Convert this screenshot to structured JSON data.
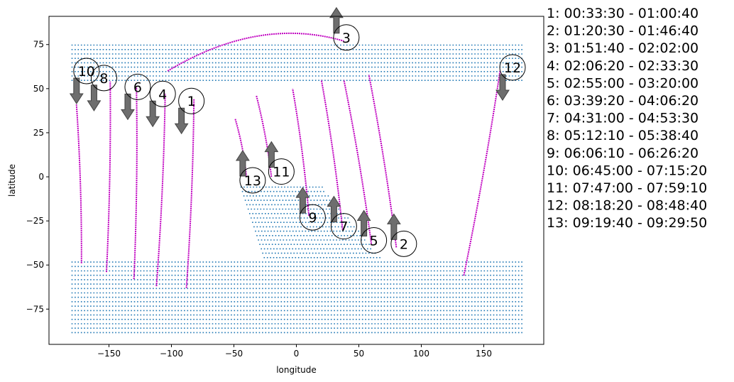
{
  "chart_data": {
    "type": "scatter",
    "title": "",
    "xlabel": "longitude",
    "ylabel": "latitude",
    "xlim": [
      -198,
      198
    ],
    "ylim": [
      -95,
      91
    ],
    "x_ticks": [
      -150,
      -100,
      -50,
      0,
      50,
      100,
      150
    ],
    "y_ticks": [
      -75,
      -50,
      -25,
      0,
      25,
      50,
      75
    ],
    "grid": false,
    "colors": {
      "ground_points": "#1f77b4",
      "track": "#c000c0",
      "arrow": "#6e6e6e"
    },
    "ground_points": {
      "description_of_region": "grid of points at 2.5 degree spacing",
      "spacing_deg": 2.5,
      "regions": [
        {
          "lat_min": 55,
          "lat_max": 77,
          "lon_min": -180,
          "lon_max": 180
        },
        {
          "lat_min": -88,
          "lat_max": -48,
          "lon_min": -180,
          "lon_max": 180
        },
        {
          "lat_min": -48,
          "lat_max": -5,
          "lon_min": -45,
          "lon_max": 70
        }
      ]
    },
    "tracks": [
      {
        "id": "1",
        "from": [
          -88,
          -63
        ],
        "to": [
          -82,
          44
        ]
      },
      {
        "id": "2",
        "from": [
          80,
          -40
        ],
        "to": [
          58,
          58
        ]
      },
      {
        "id": "3",
        "from": [
          -103,
          60
        ],
        "to": [
          38,
          77
        ],
        "peak": [
          -30,
          83
        ]
      },
      {
        "id": "4",
        "from": [
          -112,
          -62
        ],
        "to": [
          -105,
          47
        ]
      },
      {
        "id": "5",
        "from": [
          60,
          -38
        ],
        "to": [
          38,
          55
        ]
      },
      {
        "id": "6",
        "from": [
          -130,
          -58
        ],
        "to": [
          -128,
          51
        ]
      },
      {
        "id": "7",
        "from": [
          37,
          -30
        ],
        "to": [
          20,
          55
        ]
      },
      {
        "id": "8",
        "from": [
          -152,
          -54
        ],
        "to": [
          -149,
          54
        ]
      },
      {
        "id": "9",
        "from": [
          10,
          -22
        ],
        "to": [
          -3,
          50
        ]
      },
      {
        "id": "10",
        "from": [
          -172,
          -49
        ],
        "to": [
          -176,
          41
        ]
      },
      {
        "id": "11",
        "from": [
          -20,
          0
        ],
        "to": [
          -32,
          46
        ]
      },
      {
        "id": "12",
        "from": [
          134,
          -56
        ],
        "to": [
          163,
          60
        ]
      },
      {
        "id": "13",
        "from": [
          -40,
          0
        ],
        "to": [
          -49,
          33
        ]
      }
    ],
    "markers": [
      {
        "label": "1",
        "lon": -84,
        "lat": 43,
        "dir": "down"
      },
      {
        "label": "2",
        "lon": 86,
        "lat": -38,
        "dir": "up"
      },
      {
        "label": "3",
        "lon": 40,
        "lat": 79,
        "dir": "up"
      },
      {
        "label": "4",
        "lon": -107,
        "lat": 47,
        "dir": "down"
      },
      {
        "label": "5",
        "lon": 62,
        "lat": -36,
        "dir": "up"
      },
      {
        "label": "6",
        "lon": -127,
        "lat": 51,
        "dir": "down"
      },
      {
        "label": "7",
        "lon": 38,
        "lat": -28,
        "dir": "up"
      },
      {
        "label": "8",
        "lon": -154,
        "lat": 56,
        "dir": "down"
      },
      {
        "label": "9",
        "lon": 13,
        "lat": -23,
        "dir": "up"
      },
      {
        "label": "10",
        "lon": -168,
        "lat": 60,
        "dir": "down"
      },
      {
        "label": "11",
        "lon": -12,
        "lat": 3,
        "dir": "up"
      },
      {
        "label": "12",
        "lon": 173,
        "lat": 62,
        "dir": "down"
      },
      {
        "label": "13",
        "lon": -35,
        "lat": -2,
        "dir": "up"
      }
    ],
    "legend": [
      "1:  00:33:30 - 01:00:40",
      "2:  01:20:30 - 01:46:40",
      "3:  01:51:40 - 02:02:00",
      "4:  02:06:20 - 02:33:30",
      "5:  02:55:00 - 03:20:00",
      "6:  03:39:20 - 04:06:20",
      "7:  04:31:00 - 04:53:30",
      "8:  05:12:10 - 05:38:40",
      "9:  06:06:10 - 06:26:20",
      "10:  06:45:00 - 07:15:20",
      "11:  07:47:00 - 07:59:10",
      "12:  08:18:20 - 08:48:40",
      "13:  09:19:40 - 09:29:50"
    ]
  }
}
